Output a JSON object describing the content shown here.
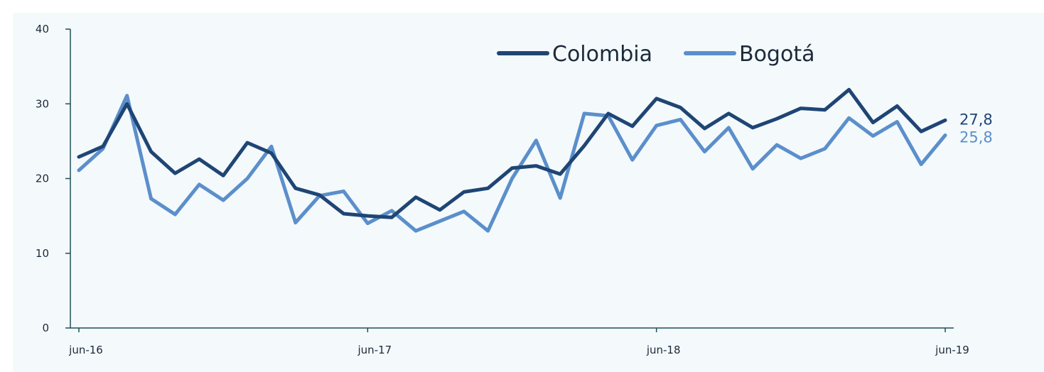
{
  "chart_data": {
    "type": "line",
    "title": "",
    "xlabel": "",
    "ylabel": "",
    "ylim": [
      0,
      40
    ],
    "yticks": [
      "0",
      "10",
      "20",
      "30",
      "40"
    ],
    "xtick_labels": [
      {
        "label": "jun-16",
        "index": 0
      },
      {
        "label": "jun-17",
        "index": 12
      },
      {
        "label": "jun-18",
        "index": 24
      },
      {
        "label": "jun-19",
        "index": 36
      }
    ],
    "grid": false,
    "legend_position": "top-right",
    "series": [
      {
        "name": "Colombia",
        "color": "#1f4574",
        "end_label": "27,8",
        "values": [
          22.9,
          24.3,
          30.0,
          23.6,
          20.7,
          22.6,
          20.4,
          24.8,
          23.4,
          18.7,
          17.8,
          15.3,
          15.0,
          14.8,
          17.5,
          15.8,
          18.2,
          18.7,
          21.4,
          21.7,
          20.6,
          24.4,
          28.7,
          27.0,
          30.7,
          29.5,
          26.7,
          28.7,
          26.8,
          28.0,
          29.4,
          29.2,
          31.9,
          27.5,
          29.7,
          26.3,
          27.8
        ]
      },
      {
        "name": "Bogotá",
        "color": "#5b8fcb",
        "end_label": "25,8",
        "values": [
          21.1,
          24.0,
          31.1,
          17.3,
          15.2,
          19.2,
          17.1,
          20.0,
          24.3,
          14.1,
          17.7,
          18.3,
          14.0,
          15.7,
          13.0,
          14.3,
          15.6,
          13.0,
          20.0,
          25.1,
          17.4,
          28.7,
          28.4,
          22.5,
          27.1,
          27.9,
          23.6,
          26.8,
          21.3,
          24.5,
          22.7,
          24.0,
          28.1,
          25.7,
          27.6,
          21.9,
          25.8
        ]
      }
    ]
  }
}
